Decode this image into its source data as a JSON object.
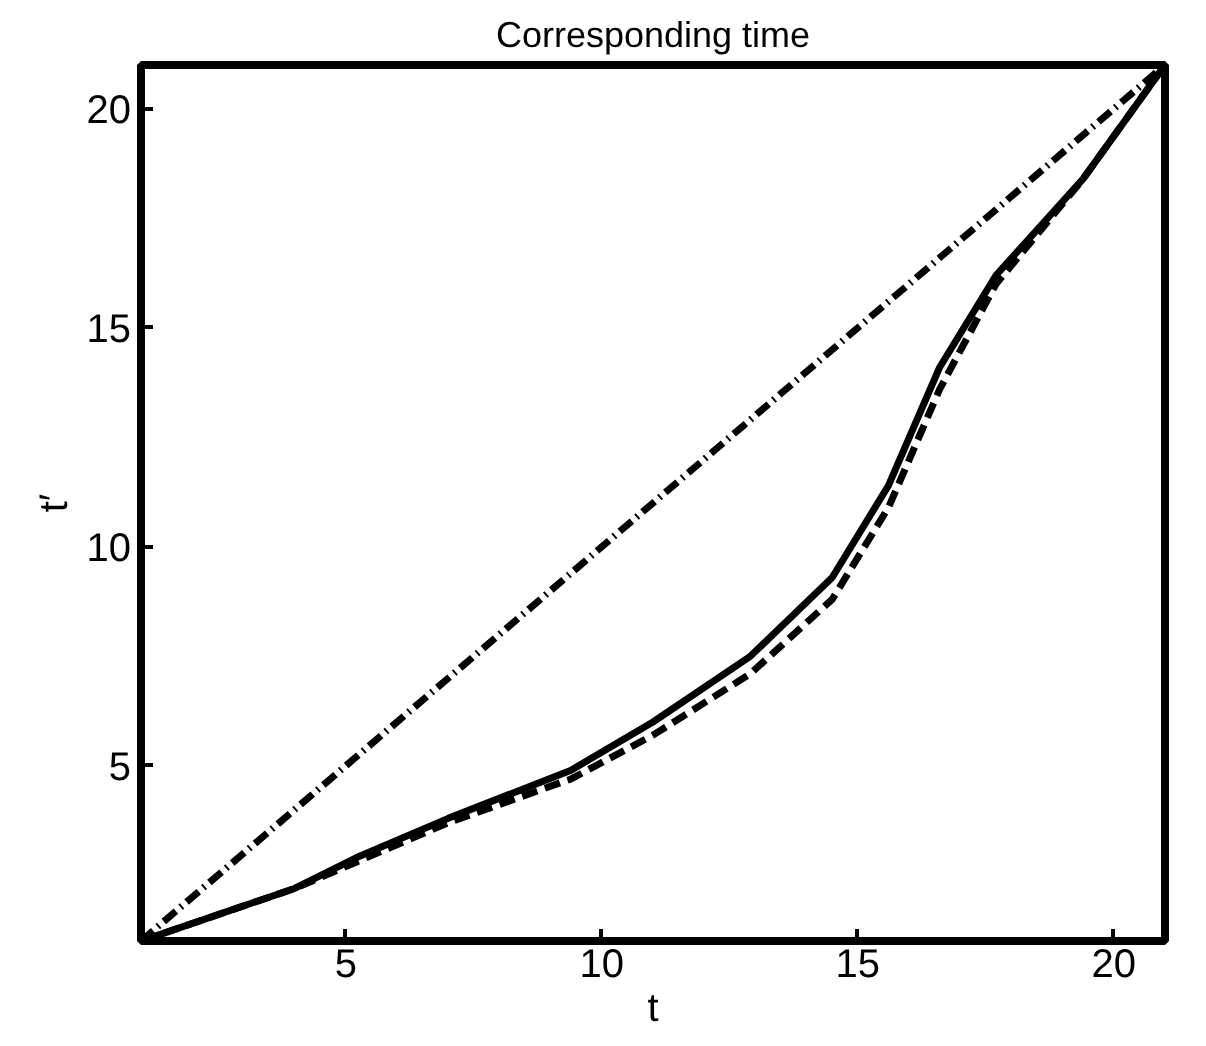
{
  "chart_data": {
    "type": "line",
    "title": "Corresponding time",
    "xlabel": "t",
    "ylabel": "t′",
    "xlim": [
      1,
      21
    ],
    "ylim": [
      1,
      21
    ],
    "xticks": [
      5,
      10,
      15,
      20
    ],
    "yticks": [
      5,
      10,
      15,
      20
    ],
    "grid": false,
    "marker": "none",
    "series": [
      {
        "color": "#000000",
        "line_style": "solid",
        "x": [
          1,
          4,
          5.2,
          7,
          9.4,
          11,
          12.9,
          14.5,
          15.6,
          16.6,
          17.7,
          19.4,
          21
        ],
        "values": [
          1,
          2.2,
          2.9,
          3.8,
          4.9,
          6.0,
          7.5,
          9.3,
          11.4,
          14.1,
          16.2,
          18.4,
          21
        ]
      },
      {
        "color": "#000000",
        "line_style": "dashed",
        "x": [
          1,
          4,
          5.2,
          7,
          9.4,
          11,
          12.9,
          14.5,
          15.6,
          16.6,
          17.7,
          19.4,
          21
        ],
        "values": [
          1,
          2.2,
          2.8,
          3.7,
          4.7,
          5.7,
          7.1,
          8.8,
          10.9,
          13.6,
          16.0,
          18.4,
          21
        ]
      },
      {
        "color": "#000000",
        "line_style": "dashdot",
        "x": [
          1,
          21
        ],
        "values": [
          1,
          21
        ]
      }
    ]
  }
}
